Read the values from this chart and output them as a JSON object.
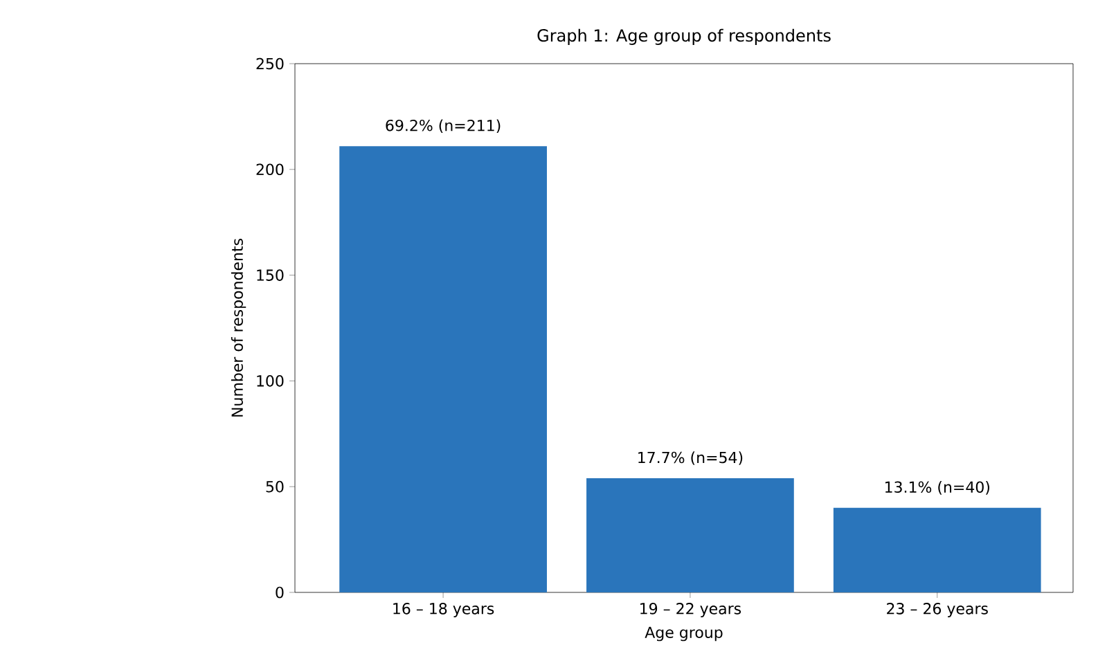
{
  "chart_data": {
    "type": "bar",
    "title": "Graph 1: Age group of respondents",
    "xlabel": "Age group",
    "ylabel": "Number of respondents",
    "categories": [
      "16 – 18 years",
      "19 – 22 years",
      "23 – 26 years"
    ],
    "values": [
      211,
      54,
      40
    ],
    "color": "#2a75bb",
    "value_labels": [
      "69.2% (n=211)",
      "17.7% (n=54)",
      "13.1% (n=40)"
    ],
    "ylim": [
      0,
      250
    ],
    "yticks": [
      0,
      50,
      100,
      150,
      200,
      250
    ],
    "grid": false
  }
}
